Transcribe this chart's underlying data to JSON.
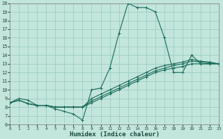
{
  "xlabel": "Humidex (Indice chaleur)",
  "xlim": [
    0,
    23
  ],
  "ylim": [
    6,
    20
  ],
  "xticks": [
    0,
    1,
    2,
    3,
    4,
    5,
    6,
    7,
    8,
    9,
    10,
    11,
    12,
    13,
    14,
    15,
    16,
    17,
    18,
    19,
    20,
    21,
    22,
    23
  ],
  "yticks": [
    6,
    7,
    8,
    9,
    10,
    11,
    12,
    13,
    14,
    15,
    16,
    17,
    18,
    19,
    20
  ],
  "bg_color": "#c2e5dc",
  "grid_color": "#9ecec5",
  "line_color": "#1a6b5a",
  "main_x": [
    0,
    1,
    2,
    3,
    4,
    5,
    6,
    7,
    8,
    9,
    10,
    11,
    12,
    13,
    14,
    15,
    16,
    17,
    18,
    19,
    20,
    21,
    22,
    23
  ],
  "main_y": [
    8.5,
    9.0,
    8.8,
    8.2,
    8.2,
    7.8,
    7.5,
    7.2,
    6.5,
    10.0,
    10.2,
    12.5,
    16.5,
    20.0,
    19.5,
    19.5,
    19.0,
    16.0,
    12.0,
    12.0,
    14.0,
    13.0,
    13.0,
    13.0
  ],
  "line1_x": [
    0,
    1,
    2,
    3,
    4,
    5,
    6,
    7,
    8,
    9,
    10,
    11,
    12,
    13,
    14,
    15,
    16,
    17,
    18,
    19,
    20,
    21,
    22,
    23
  ],
  "line1_y": [
    8.5,
    8.8,
    8.4,
    8.2,
    8.2,
    8.0,
    8.0,
    8.0,
    8.0,
    8.5,
    9.0,
    9.5,
    10.0,
    10.5,
    11.0,
    11.5,
    12.0,
    12.3,
    12.5,
    12.7,
    13.0,
    13.0,
    13.0,
    13.0
  ],
  "line2_x": [
    0,
    1,
    2,
    3,
    4,
    5,
    6,
    7,
    8,
    9,
    10,
    11,
    12,
    13,
    14,
    15,
    16,
    17,
    18,
    19,
    20,
    21,
    22,
    23
  ],
  "line2_y": [
    8.5,
    8.8,
    8.4,
    8.2,
    8.2,
    8.0,
    8.0,
    8.0,
    8.0,
    8.7,
    9.2,
    9.7,
    10.2,
    10.7,
    11.2,
    11.7,
    12.2,
    12.5,
    12.8,
    13.0,
    13.3,
    13.2,
    13.1,
    13.0
  ],
  "line3_x": [
    0,
    1,
    2,
    3,
    4,
    5,
    6,
    7,
    8,
    9,
    10,
    11,
    12,
    13,
    14,
    15,
    16,
    17,
    18,
    19,
    20,
    21,
    22,
    23
  ],
  "line3_y": [
    8.5,
    8.8,
    8.4,
    8.2,
    8.2,
    8.0,
    8.0,
    8.0,
    8.0,
    9.0,
    9.5,
    10.0,
    10.5,
    11.0,
    11.5,
    12.0,
    12.5,
    12.8,
    13.0,
    13.2,
    13.5,
    13.3,
    13.2,
    13.0
  ]
}
